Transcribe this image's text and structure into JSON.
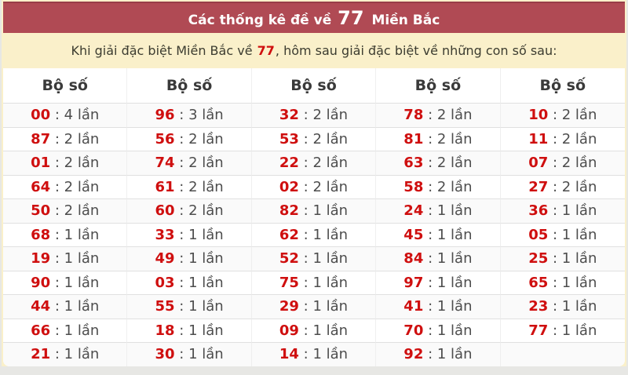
{
  "title": {
    "prefix": "Các thống kê đề về ",
    "highlight": "77",
    "suffix": " Miền Bắc"
  },
  "subtitle": {
    "before": "Khi giải đặc biệt Miền Bắc về ",
    "highlight": "77",
    "after": ", hôm sau giải đặc biệt về những con số sau:"
  },
  "table": {
    "column_header": "Bộ số",
    "separator": " : ",
    "count_unit": "lần",
    "columns": [
      {
        "cells": [
          {
            "number": "00",
            "count": "4"
          },
          {
            "number": "87",
            "count": "2"
          },
          {
            "number": "01",
            "count": "2"
          },
          {
            "number": "64",
            "count": "2"
          },
          {
            "number": "50",
            "count": "2"
          },
          {
            "number": "68",
            "count": "1"
          },
          {
            "number": "19",
            "count": "1"
          },
          {
            "number": "90",
            "count": "1"
          },
          {
            "number": "44",
            "count": "1"
          },
          {
            "number": "66",
            "count": "1"
          },
          {
            "number": "21",
            "count": "1"
          }
        ]
      },
      {
        "cells": [
          {
            "number": "96",
            "count": "3"
          },
          {
            "number": "56",
            "count": "2"
          },
          {
            "number": "74",
            "count": "2"
          },
          {
            "number": "61",
            "count": "2"
          },
          {
            "number": "60",
            "count": "2"
          },
          {
            "number": "33",
            "count": "1"
          },
          {
            "number": "49",
            "count": "1"
          },
          {
            "number": "03",
            "count": "1"
          },
          {
            "number": "55",
            "count": "1"
          },
          {
            "number": "18",
            "count": "1"
          },
          {
            "number": "30",
            "count": "1"
          }
        ]
      },
      {
        "cells": [
          {
            "number": "32",
            "count": "2"
          },
          {
            "number": "53",
            "count": "2"
          },
          {
            "number": "22",
            "count": "2"
          },
          {
            "number": "02",
            "count": "2"
          },
          {
            "number": "82",
            "count": "1"
          },
          {
            "number": "62",
            "count": "1"
          },
          {
            "number": "52",
            "count": "1"
          },
          {
            "number": "75",
            "count": "1"
          },
          {
            "number": "29",
            "count": "1"
          },
          {
            "number": "09",
            "count": "1"
          },
          {
            "number": "14",
            "count": "1"
          }
        ]
      },
      {
        "cells": [
          {
            "number": "78",
            "count": "2"
          },
          {
            "number": "81",
            "count": "2"
          },
          {
            "number": "63",
            "count": "2"
          },
          {
            "number": "58",
            "count": "2"
          },
          {
            "number": "24",
            "count": "1"
          },
          {
            "number": "45",
            "count": "1"
          },
          {
            "number": "84",
            "count": "1"
          },
          {
            "number": "97",
            "count": "1"
          },
          {
            "number": "41",
            "count": "1"
          },
          {
            "number": "70",
            "count": "1"
          },
          {
            "number": "92",
            "count": "1"
          }
        ]
      },
      {
        "cells": [
          {
            "number": "10",
            "count": "2"
          },
          {
            "number": "11",
            "count": "2"
          },
          {
            "number": "07",
            "count": "2"
          },
          {
            "number": "27",
            "count": "2"
          },
          {
            "number": "36",
            "count": "1"
          },
          {
            "number": "05",
            "count": "1"
          },
          {
            "number": "25",
            "count": "1"
          },
          {
            "number": "65",
            "count": "1"
          },
          {
            "number": "23",
            "count": "1"
          },
          {
            "number": "77",
            "count": "1"
          }
        ]
      }
    ]
  },
  "colors": {
    "title_bar_bg": "#b04a54",
    "title_text": "#ffffff",
    "card_bg": "#faf0ca",
    "page_bg": "#e7e7e4",
    "number_red": "#cf0f0f",
    "cell_text": "#4d4d4d",
    "header_text": "#3a3a3a"
  }
}
